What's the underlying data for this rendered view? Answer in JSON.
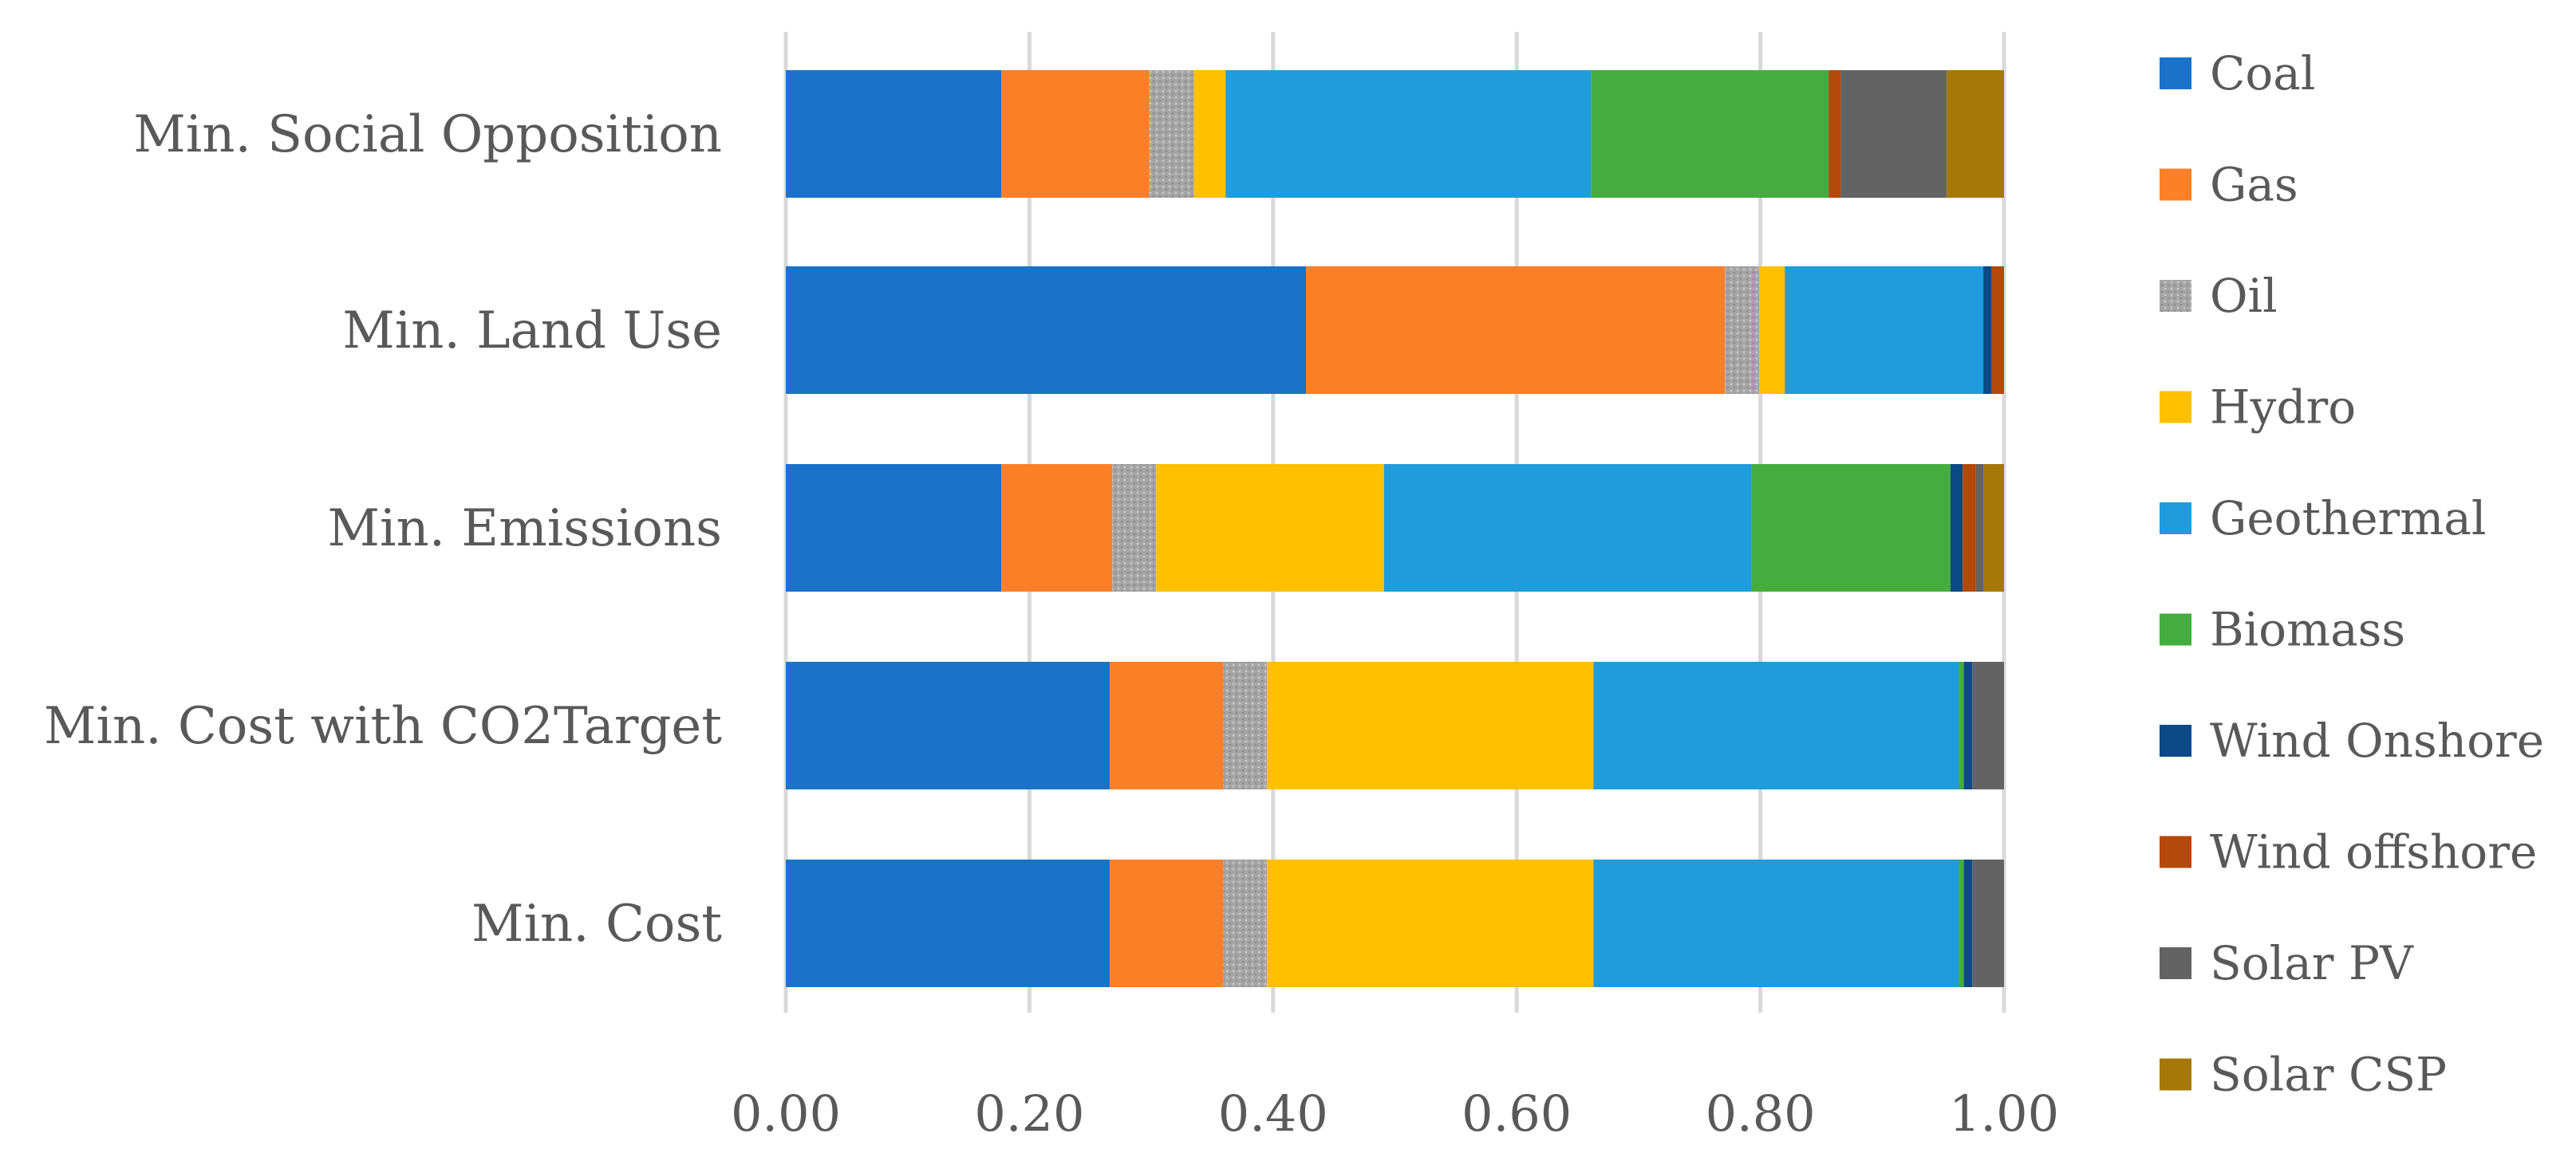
{
  "chart_data": {
    "type": "bar",
    "orientation": "horizontal",
    "stacked": true,
    "title": "",
    "xlabel": "",
    "ylabel": "",
    "xlim": [
      0,
      1
    ],
    "x_ticks": [
      "0.00",
      "0.20",
      "0.40",
      "0.60",
      "0.80",
      "1.00"
    ],
    "x_tick_values": [
      0,
      0.2,
      0.4,
      0.6,
      0.8,
      1.0
    ],
    "grid": true,
    "legend_position": "right",
    "categories": [
      "Min. Social Opposition",
      "Min. Land Use",
      "Min. Emissions",
      "Min. Cost with CO2Target",
      "Min. Cost"
    ],
    "series": [
      {
        "name": "Coal",
        "color": "#1a73c8",
        "values": [
          0.177,
          0.427,
          0.177,
          0.266,
          0.266
        ]
      },
      {
        "name": "Gas",
        "color": "#fd7f28",
        "values": [
          0.121,
          0.344,
          0.091,
          0.093,
          0.093
        ]
      },
      {
        "name": "Oil",
        "color": "#a5a5a5",
        "values": [
          0.037,
          0.028,
          0.036,
          0.036,
          0.036
        ]
      },
      {
        "name": "Hydro",
        "color": "#ffc000",
        "values": [
          0.026,
          0.021,
          0.187,
          0.268,
          0.268
        ]
      },
      {
        "name": "Geothermal",
        "color": "#1f9cdb",
        "values": [
          0.3,
          0.163,
          0.302,
          0.3,
          0.3
        ]
      },
      {
        "name": "Biomass",
        "color": "#44ad3e",
        "values": [
          0.195,
          0.0,
          0.163,
          0.004,
          0.004
        ]
      },
      {
        "name": "Wind Onshore",
        "color": "#0c4989",
        "values": [
          0.0,
          0.007,
          0.01,
          0.007,
          0.007
        ]
      },
      {
        "name": "Wind offshore",
        "color": "#b5480b",
        "values": [
          0.01,
          0.01,
          0.011,
          0.0,
          0.0
        ]
      },
      {
        "name": "Solar PV",
        "color": "#636363",
        "values": [
          0.087,
          0.0,
          0.006,
          0.026,
          0.026
        ]
      },
      {
        "name": "Solar CSP",
        "color": "#a6780a",
        "values": [
          0.047,
          0.0,
          0.017,
          0.0,
          0.0
        ]
      }
    ]
  }
}
